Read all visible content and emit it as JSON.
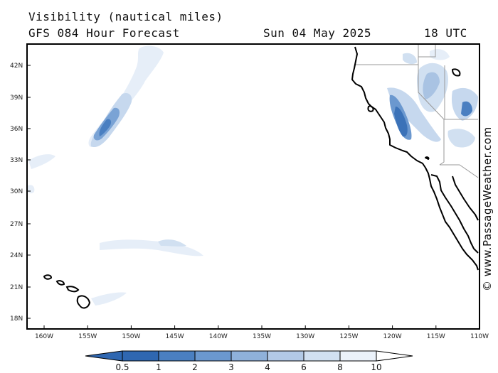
{
  "header": {
    "title": "Visibility (nautical miles)",
    "subtitle": "GFS 084 Hour Forecast",
    "date": "Sun 04 May 2025",
    "time": "18 UTC"
  },
  "credit": "© www.PassageWeather.com",
  "lat_labels": [
    "42N",
    "39N",
    "36N",
    "33N",
    "30N",
    "27N",
    "24N",
    "21N",
    "18N"
  ],
  "lon_labels": [
    "160W",
    "155W",
    "150W",
    "145W",
    "140W",
    "135W",
    "130W",
    "125W",
    "120W",
    "115W",
    "110W"
  ],
  "colorbar": {
    "labels": [
      "0.5",
      "1",
      "2",
      "3",
      "4",
      "6",
      "8",
      "10"
    ],
    "colors": [
      "#2f67b1",
      "#4a7fc1",
      "#6b98cf",
      "#8fb1da",
      "#b2c9e6",
      "#d1e0f1",
      "#ebf2fa",
      "#ffffff"
    ]
  },
  "map": {
    "land_color": "#ffffff",
    "coast_color": "#000000",
    "border_color": "#9a9a9a",
    "visibility_colors": {
      "low": "#2f67b1",
      "mid": "#7aa3d5",
      "light": "#c6d8ee",
      "faint": "#e6eef8"
    }
  }
}
